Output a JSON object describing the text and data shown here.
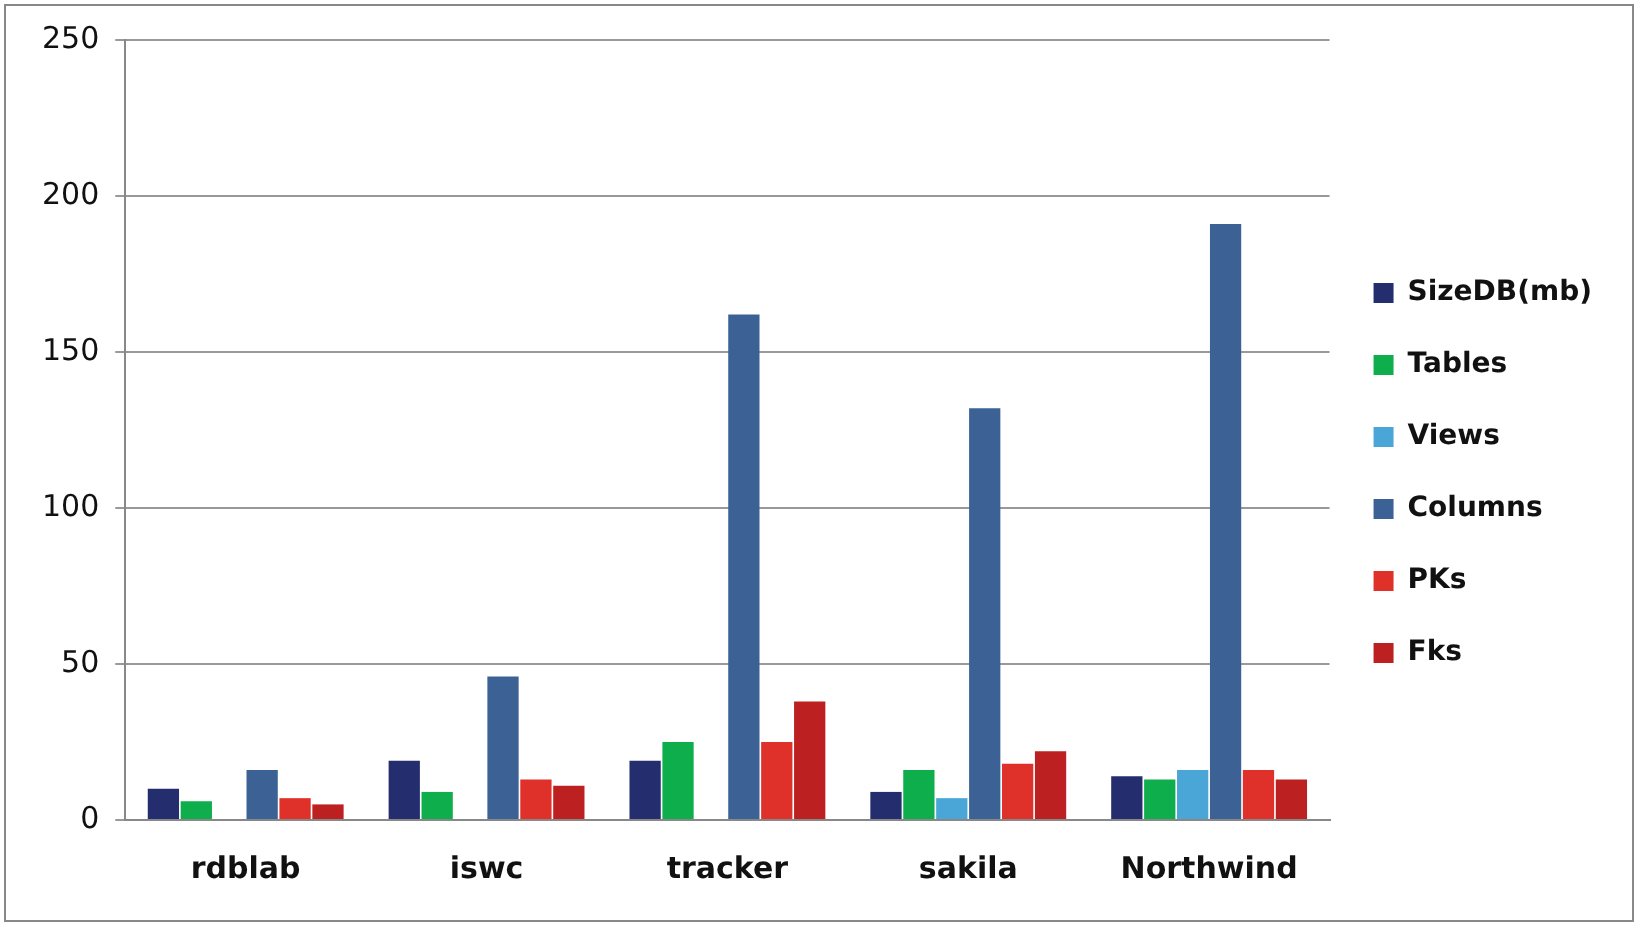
{
  "chart_data": {
    "type": "bar",
    "categories": [
      "rdblab",
      "iswc",
      "tracker",
      "sakila",
      "Northwind"
    ],
    "series": [
      {
        "name": "SizeDB(mb)",
        "color": "#242d6e",
        "values": [
          10,
          19,
          19,
          9,
          14
        ]
      },
      {
        "name": "Tables",
        "color": "#0fae4c",
        "values": [
          6,
          9,
          25,
          16,
          13
        ]
      },
      {
        "name": "Views",
        "color": "#4ba6d8",
        "values": [
          0,
          0,
          0,
          7,
          16
        ]
      },
      {
        "name": "Columns",
        "color": "#3c6295",
        "values": [
          16,
          46,
          162,
          132,
          191
        ]
      },
      {
        "name": "PKs",
        "color": "#e0302a",
        "values": [
          7,
          13,
          25,
          18,
          16
        ]
      },
      {
        "name": "Fks",
        "color": "#bd2020",
        "values": [
          5,
          11,
          38,
          22,
          13
        ]
      }
    ],
    "ylim": [
      0,
      250
    ],
    "yticks": [
      0,
      50,
      100,
      150,
      200,
      250
    ],
    "grid": "y",
    "legend": "right"
  }
}
